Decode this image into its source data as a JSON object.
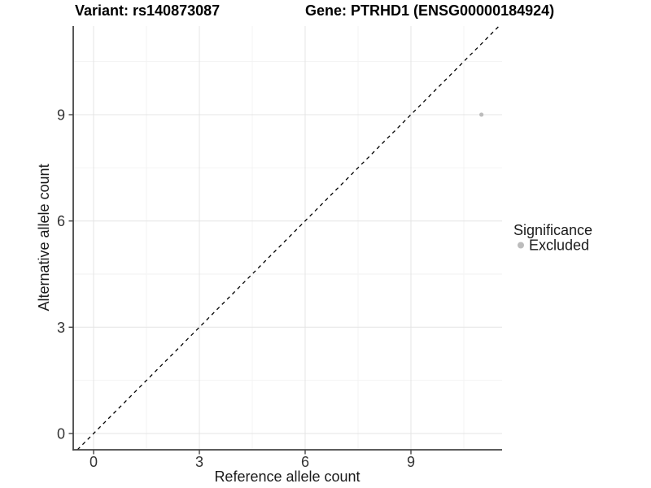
{
  "chart_data": {
    "type": "scatter",
    "title_left": "Variant: rs140873087",
    "title_right": "Gene: PTRHD1 (ENSG00000184924)",
    "xlabel": "Reference allele count",
    "ylabel": "Alternative allele count",
    "x_ticks": [
      "0",
      "3",
      "6",
      "9"
    ],
    "y_ticks": [
      "0",
      "3",
      "6",
      "9"
    ],
    "xlim": [
      -0.58,
      11.59
    ],
    "ylim": [
      -0.46,
      11.5
    ],
    "grid": true,
    "legend": {
      "title": "Significance",
      "position": "right",
      "items": [
        {
          "label": "Excluded",
          "color": "#bcbcbc",
          "marker": "circle"
        }
      ]
    },
    "series": [
      {
        "name": "Excluded",
        "color": "#bcbcbc",
        "points": [
          {
            "x": 11,
            "y": 9
          }
        ]
      }
    ],
    "annotations": [
      {
        "type": "identity-line",
        "slope": 1,
        "intercept": 0,
        "style": "dashed",
        "color": "#000000"
      }
    ]
  },
  "colors": {
    "point": "#bcbcbc",
    "grid_major": "#e4e4e4",
    "grid_minor": "#f2f2f2",
    "axis": "#444444",
    "background": "#ffffff"
  }
}
